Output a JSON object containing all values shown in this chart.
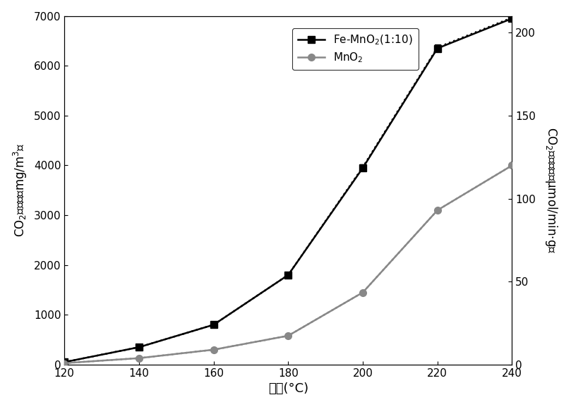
{
  "temperatures": [
    120,
    140,
    160,
    180,
    200,
    220,
    240
  ],
  "fe_mno2_production": [
    50,
    350,
    800,
    1800,
    3950,
    6350,
    6950
  ],
  "mno2_production": [
    30,
    130,
    300,
    580,
    1450,
    3100,
    4000
  ],
  "fe_mno2_rate": [
    1.5,
    10.5,
    24,
    54,
    119,
    191,
    209
  ],
  "mno2_rate": [
    0.9,
    3.9,
    9,
    17.4,
    43.5,
    93,
    120
  ],
  "xlabel": "温度(°C)",
  "ylabel_left": "CO₂生成量（mg/m³）",
  "ylabel_right": "CO₂生成速率(μmol/min·g)",
  "legend_fe": "Fe-MnO$_2$(1:10)",
  "legend_mno2": "MnO$_2$",
  "xlim": [
    120,
    240
  ],
  "ylim_left": [
    0,
    7000
  ],
  "ylim_right": [
    0,
    210
  ],
  "xticks": [
    120,
    140,
    160,
    180,
    200,
    220,
    240
  ],
  "yticks_left": [
    0,
    1000,
    2000,
    3000,
    4000,
    5000,
    6000,
    7000
  ],
  "yticks_right": [
    0,
    50,
    100,
    150,
    200
  ],
  "color_fe": "#000000",
  "color_mno2": "#888888",
  "bg_color": "#ffffff",
  "linewidth": 1.8,
  "markersize": 7
}
